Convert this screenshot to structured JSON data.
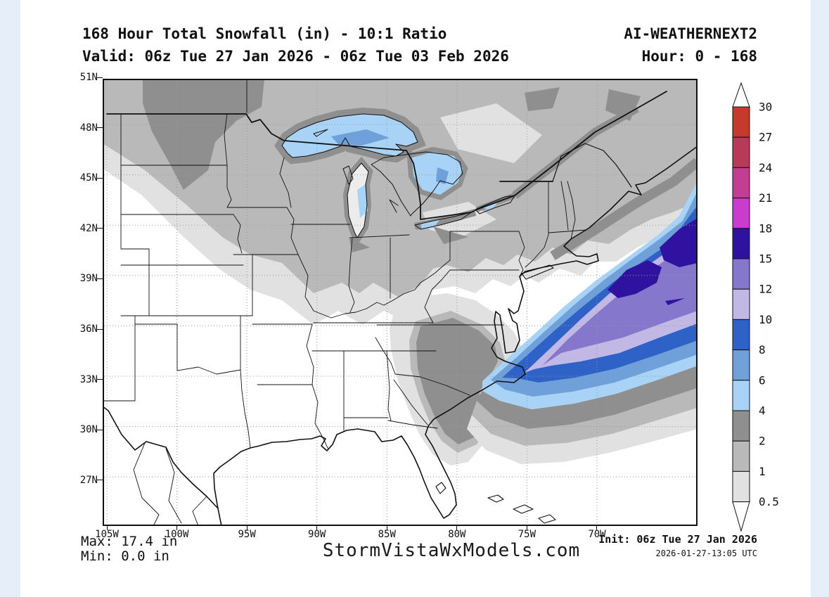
{
  "page": {
    "background": "#e6eefa",
    "panel_background": "#ffffff"
  },
  "header": {
    "title": "168 Hour Total Snowfall (in) - 10:1 Ratio",
    "model": "AI-WEATHERNEXT2",
    "valid": "Valid: 06z Tue 27 Jan 2026 - 06z Tue 03 Feb 2026",
    "hour": "Hour: 0 - 168"
  },
  "map": {
    "lat_ticks": [
      "51N",
      "48N",
      "45N",
      "42N",
      "39N",
      "36N",
      "33N",
      "30N",
      "27N"
    ],
    "lon_ticks": [
      "105W",
      "100W",
      "95W",
      "90W",
      "85W",
      "80W",
      "75W",
      "70W"
    ]
  },
  "scale": {
    "unit": "in",
    "boundaries": [
      "30",
      "27",
      "24",
      "21",
      "18",
      "15",
      "12",
      "10",
      "8",
      "6",
      "4",
      "2",
      "1",
      "0.5"
    ],
    "colors_top_to_bottom": [
      "#c43a2c",
      "#b93a58",
      "#c23e92",
      "#c93ccd",
      "#2f12a0",
      "#8577cb",
      "#c2b8e6",
      "#2e62c6",
      "#6fa0d9",
      "#a8d2f6",
      "#8f8f8f",
      "#b9b9b9",
      "#e1e1e1"
    ]
  },
  "footer": {
    "max": "Max: 17.4 in",
    "min": "Min: 0.0 in",
    "watermark": "StormVistaWxModels.com",
    "init": "Init: 06z Tue 27 Jan 2026",
    "generated": "2026-01-27-13:05 UTC"
  },
  "chart_data": {
    "type": "map",
    "title": "168 Hour Total Snowfall (in) - 10:1 Ratio",
    "model": "AI-WEATHERNEXT2",
    "valid_start": "06z Tue 27 Jan 2026",
    "valid_end": "06z Tue 03 Feb 2026",
    "forecast_hour_range": [
      0,
      168
    ],
    "init_time": "06z Tue 27 Jan 2026",
    "generated_time": "2026-01-27-13:05 UTC",
    "max_value_in": 17.4,
    "min_value_in": 0.0,
    "lat_axis_ticks": [
      "51N",
      "48N",
      "45N",
      "42N",
      "39N",
      "36N",
      "33N",
      "30N",
      "27N"
    ],
    "lon_axis_ticks": [
      "105W",
      "100W",
      "95W",
      "90W",
      "85W",
      "80W",
      "75W",
      "70W"
    ],
    "colorbar_levels_in": [
      0.5,
      1,
      2,
      4,
      6,
      8,
      10,
      12,
      15,
      18,
      21,
      24,
      27,
      30
    ],
    "colorbar_colors_low_to_high": [
      "#e1e1e1",
      "#b9b9b9",
      "#8f8f8f",
      "#a8d2f6",
      "#6fa0d9",
      "#2e62c6",
      "#c2b8e6",
      "#8577cb",
      "#2f12a0",
      "#c93ccd",
      "#c23e92",
      "#b93a58",
      "#c43a2c"
    ],
    "notable_features": [
      "Heavy snowfall swath offshore of the US East Coast from the Carolinas to the Canadian Maritimes, with 15-18 in cores southeast of New England",
      "4-8 in lake-effect patches over Lake Superior and Lake Huron / Georgian Bay",
      "2-4 in shading over North Dakota / northern Minnesota and over the coastal Carolinas / Virginia",
      "Snow-free (white) Gulf Coast, Texas and Florida"
    ]
  }
}
